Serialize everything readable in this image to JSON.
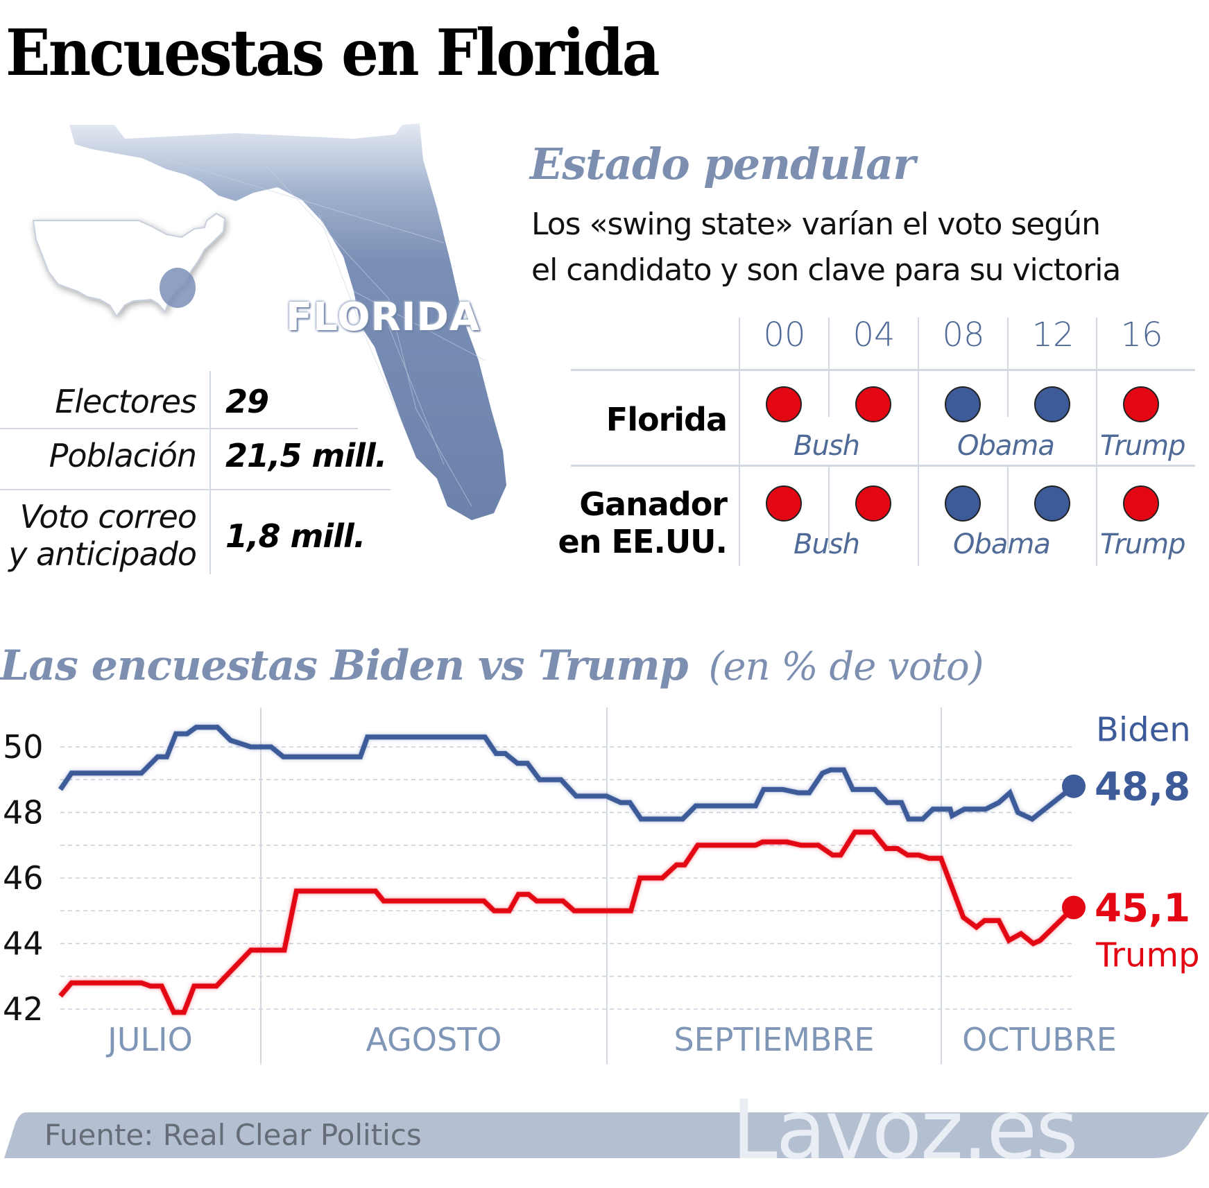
{
  "title": "Encuestas en Florida",
  "map": {
    "state_label": "FLORIDA"
  },
  "stats": [
    {
      "label_lines": [
        "Electores"
      ],
      "value": "29"
    },
    {
      "label_lines": [
        "Población"
      ],
      "value": "21,5 mill."
    },
    {
      "label_lines": [
        "Voto correo",
        "y anticipado"
      ],
      "value": "1,8 mill."
    }
  ],
  "swing": {
    "title": "Estado pendular",
    "subtitle_lines": [
      "Los «swing state» varían el voto según",
      "el candidato y son clave para su victoria"
    ],
    "years": [
      "00",
      "04",
      "08",
      "12",
      "16"
    ],
    "rows": [
      {
        "label_lines": [
          "Florida"
        ],
        "parties": [
          "R",
          "R",
          "D",
          "D",
          "R"
        ],
        "candidates": [
          "Bush",
          "Obama",
          "Trump"
        ]
      },
      {
        "label_lines": [
          "Ganador",
          "en EE.UU."
        ],
        "parties": [
          "R",
          "R",
          "D",
          "D",
          "R"
        ],
        "candidates": [
          "Bush",
          "Obama",
          "Trump"
        ]
      }
    ]
  },
  "colors": {
    "republican": "#e30613",
    "democrat": "#3d5a99",
    "accent": "#7d8fb0",
    "grid": "#c8ced8",
    "footer_bar": "#b4bfd2"
  },
  "chart_data": {
    "type": "line",
    "title": "Las encuestas Biden vs Trump",
    "unit_label": "(en % de voto)",
    "xlabel": "",
    "ylabel": "% de voto",
    "ylim": [
      42,
      50
    ],
    "yticks": [
      50,
      48,
      46,
      44,
      42
    ],
    "grid": true,
    "months": [
      "JULIO",
      "AGOSTO",
      "SEPTIEMBRE",
      "OCTUBRE"
    ],
    "x_note": "x in fraction of time span (0 = start of July series, 1 = last poll)",
    "series": [
      {
        "name": "Biden",
        "final_label": "48,8",
        "final_value": 48.8,
        "points": [
          [
            0.0,
            48.7
          ],
          [
            0.011,
            49.2
          ],
          [
            0.08,
            49.2
          ],
          [
            0.096,
            49.7
          ],
          [
            0.105,
            49.7
          ],
          [
            0.114,
            50.4
          ],
          [
            0.125,
            50.4
          ],
          [
            0.134,
            50.6
          ],
          [
            0.155,
            50.6
          ],
          [
            0.168,
            50.2
          ],
          [
            0.188,
            50.0
          ],
          [
            0.208,
            50.0
          ],
          [
            0.22,
            49.7
          ],
          [
            0.296,
            49.7
          ],
          [
            0.303,
            50.3
          ],
          [
            0.419,
            50.3
          ],
          [
            0.43,
            49.8
          ],
          [
            0.439,
            49.8
          ],
          [
            0.451,
            49.5
          ],
          [
            0.461,
            49.5
          ],
          [
            0.473,
            49.0
          ],
          [
            0.494,
            49.0
          ],
          [
            0.509,
            48.5
          ],
          [
            0.539,
            48.5
          ],
          [
            0.553,
            48.3
          ],
          [
            0.562,
            48.3
          ],
          [
            0.573,
            47.8
          ],
          [
            0.614,
            47.8
          ],
          [
            0.627,
            48.2
          ],
          [
            0.686,
            48.2
          ],
          [
            0.694,
            48.7
          ],
          [
            0.713,
            48.7
          ],
          [
            0.728,
            48.6
          ],
          [
            0.739,
            48.6
          ],
          [
            0.752,
            49.2
          ],
          [
            0.76,
            49.3
          ],
          [
            0.773,
            49.3
          ],
          [
            0.782,
            48.7
          ],
          [
            0.804,
            48.7
          ],
          [
            0.816,
            48.3
          ],
          [
            0.83,
            48.3
          ],
          [
            0.837,
            47.8
          ],
          [
            0.851,
            47.8
          ],
          [
            0.861,
            48.1
          ],
          [
            0.878,
            48.1
          ],
          [
            0.88,
            47.9
          ],
          [
            0.892,
            48.1
          ],
          [
            0.913,
            48.1
          ],
          [
            0.926,
            48.3
          ],
          [
            0.937,
            48.6
          ],
          [
            0.945,
            48.0
          ],
          [
            0.959,
            47.8
          ],
          [
            1.0,
            48.8
          ]
        ]
      },
      {
        "name": "Trump",
        "final_label": "45,1",
        "final_value": 45.1,
        "points": [
          [
            0.0,
            42.4
          ],
          [
            0.011,
            42.8
          ],
          [
            0.08,
            42.8
          ],
          [
            0.089,
            42.7
          ],
          [
            0.1,
            42.7
          ],
          [
            0.112,
            41.9
          ],
          [
            0.122,
            41.9
          ],
          [
            0.132,
            42.7
          ],
          [
            0.154,
            42.7
          ],
          [
            0.188,
            43.8
          ],
          [
            0.221,
            43.8
          ],
          [
            0.233,
            45.6
          ],
          [
            0.311,
            45.6
          ],
          [
            0.319,
            45.3
          ],
          [
            0.418,
            45.3
          ],
          [
            0.428,
            45.0
          ],
          [
            0.443,
            45.0
          ],
          [
            0.452,
            45.5
          ],
          [
            0.462,
            45.5
          ],
          [
            0.47,
            45.3
          ],
          [
            0.496,
            45.3
          ],
          [
            0.507,
            45.0
          ],
          [
            0.563,
            45.0
          ],
          [
            0.572,
            46.0
          ],
          [
            0.594,
            46.0
          ],
          [
            0.608,
            46.4
          ],
          [
            0.616,
            46.4
          ],
          [
            0.629,
            47.0
          ],
          [
            0.686,
            47.0
          ],
          [
            0.693,
            47.1
          ],
          [
            0.717,
            47.1
          ],
          [
            0.731,
            47.0
          ],
          [
            0.748,
            47.0
          ],
          [
            0.762,
            46.7
          ],
          [
            0.77,
            46.7
          ],
          [
            0.784,
            47.4
          ],
          [
            0.802,
            47.4
          ],
          [
            0.815,
            46.9
          ],
          [
            0.826,
            46.9
          ],
          [
            0.836,
            46.7
          ],
          [
            0.847,
            46.7
          ],
          [
            0.857,
            46.6
          ],
          [
            0.869,
            46.6
          ],
          [
            0.891,
            44.8
          ],
          [
            0.904,
            44.5
          ],
          [
            0.912,
            44.7
          ],
          [
            0.926,
            44.7
          ],
          [
            0.936,
            44.1
          ],
          [
            0.948,
            44.3
          ],
          [
            0.96,
            44.0
          ],
          [
            0.967,
            44.1
          ],
          [
            1.0,
            45.1
          ]
        ]
      }
    ]
  },
  "footer": {
    "source": "Fuente: Real Clear Politics",
    "brand": "Lavoz.es"
  }
}
